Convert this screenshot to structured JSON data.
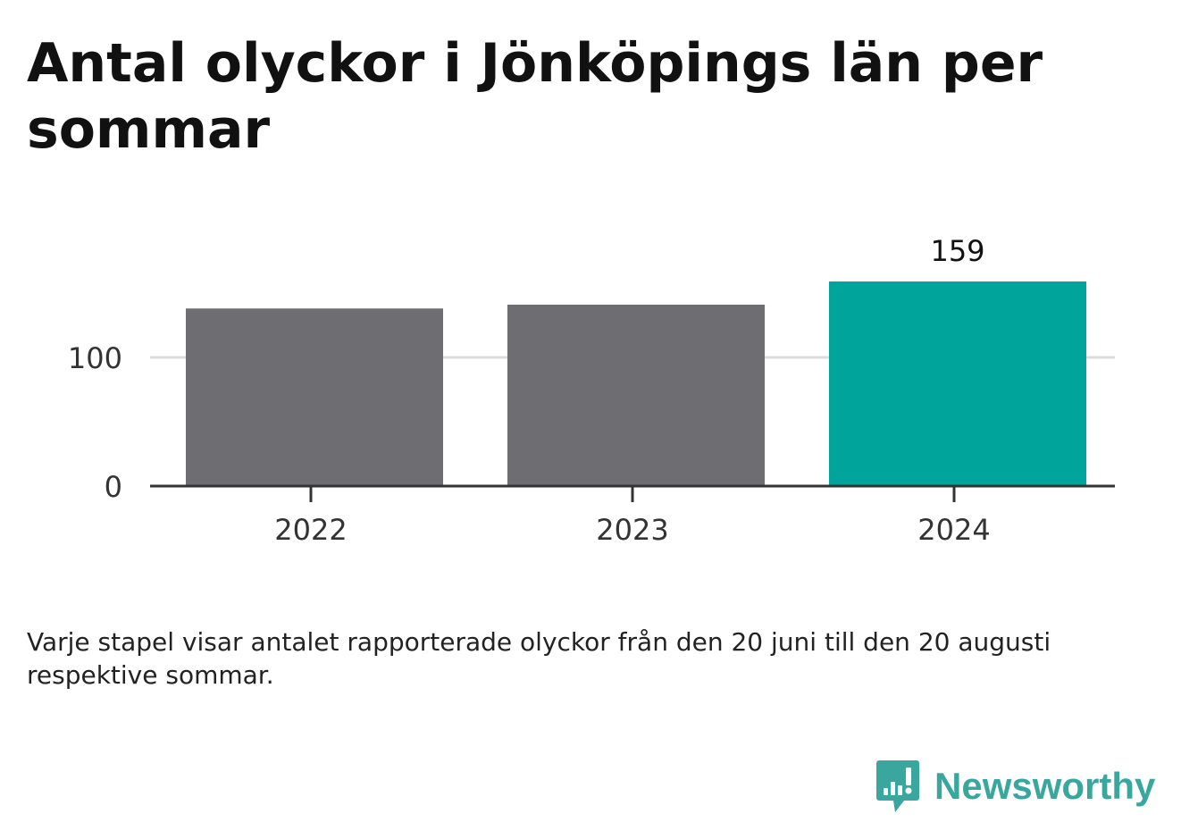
{
  "header": {
    "title": "Antal olyckor i Jönköpings län per sommar"
  },
  "chart_data": {
    "type": "bar",
    "categories": [
      "2022",
      "2023",
      "2024"
    ],
    "values": [
      138,
      141,
      159
    ],
    "data_labels": [
      "",
      "",
      "159"
    ],
    "bar_colors": [
      "#6e6d72",
      "#6e6d72",
      "#00a49a"
    ],
    "yticks": [
      0,
      100
    ],
    "ylim": [
      0,
      170
    ],
    "grid": true,
    "gridline_color": "#dddddd",
    "axis_color": "#333333"
  },
  "footer": {
    "caption": "Varje stapel visar antalet rapporterade olyckor från den 20 juni till den 20 augusti respektive sommar.",
    "brand": "Newsworthy",
    "brand_icon": "bar-chart-speech-bubble-icon",
    "brand_color": "#3aa79f"
  }
}
